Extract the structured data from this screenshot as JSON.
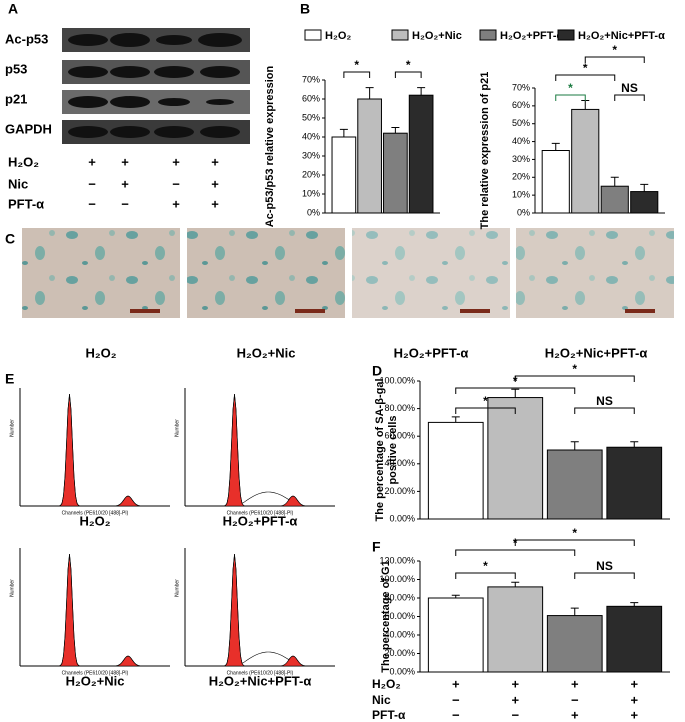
{
  "panel_labels": {
    "a": "A",
    "b": "B",
    "c": "C",
    "d": "D",
    "e": "E",
    "f": "F"
  },
  "blot": {
    "proteins": [
      "Ac-p53",
      "p53",
      "p21",
      "GAPDH"
    ],
    "treatments": [
      {
        "name": "H₂O₂",
        "signs": [
          "+",
          "+",
          "+",
          "+"
        ]
      },
      {
        "name": "Nic",
        "signs": [
          "−",
          "+",
          "−",
          "+"
        ]
      },
      {
        "name": "PFT-α",
        "signs": [
          "−",
          "−",
          "+",
          "+"
        ]
      }
    ]
  },
  "legend": {
    "names": [
      "H₂O₂",
      "H₂O₂+Nic",
      "H₂O₂+PFT-α",
      "H₂O₂+Nic+PFT-α"
    ],
    "colors": [
      "#ffffff",
      "#bdbdbd",
      "#7f7f7f",
      "#2b2b2b"
    ]
  },
  "senescence_images": {
    "captions": [
      "H₂O₂",
      "H₂O₂+Nic",
      "H₂O₂+PFT-α",
      "H₂O₂+Nic+PFT-α"
    ]
  },
  "flow": {
    "captions": [
      "H₂O₂",
      "H₂O₂+PFT-α",
      "H₂O₂+Nic",
      "H₂O₂+Nic+PFT-α"
    ],
    "x_axis_label": "Channels (PE610/20 [488]-PI)",
    "y_axis_label": "Number"
  },
  "f_treatments": [
    {
      "name": "H₂O₂",
      "signs": [
        "+",
        "+",
        "+",
        "+"
      ]
    },
    {
      "name": "Nic",
      "signs": [
        "−",
        "+",
        "−",
        "+"
      ]
    },
    {
      "name": "PFT-α",
      "signs": [
        "−",
        "−",
        "+",
        "+"
      ]
    }
  ],
  "chart_data": [
    {
      "type": "bar",
      "ylabel": [
        "Ac-p53/p53 relative expression"
      ],
      "values": [
        40,
        60,
        42,
        62
      ],
      "errors": [
        4,
        6,
        3,
        4
      ],
      "colors": [
        "#ffffff",
        "#bdbdbd",
        "#7f7f7f",
        "#2b2b2b"
      ],
      "ylim": [
        0,
        70
      ],
      "yticks": [
        {
          "value": 0,
          "label": "0%"
        },
        {
          "value": 10,
          "label": "10%"
        },
        {
          "value": 20,
          "label": "20%"
        },
        {
          "value": 30,
          "label": "30%"
        },
        {
          "value": 40,
          "label": "40%"
        },
        {
          "value": 50,
          "label": "50%"
        },
        {
          "value": 60,
          "label": "60%"
        },
        {
          "value": 70,
          "label": "70%"
        }
      ],
      "annotations": [
        "*",
        "*"
      ]
    },
    {
      "type": "bar",
      "ylabel": [
        "The relative expression of p21"
      ],
      "values": [
        35,
        58,
        15,
        12
      ],
      "errors": [
        4,
        5,
        5,
        4
      ],
      "colors": [
        "#ffffff",
        "#bdbdbd",
        "#7f7f7f",
        "#2b2b2b"
      ],
      "ylim": [
        0,
        70
      ],
      "yticks": [
        {
          "value": 0,
          "label": "0%"
        },
        {
          "value": 10,
          "label": "10%"
        },
        {
          "value": 20,
          "label": "20%"
        },
        {
          "value": 30,
          "label": "30%"
        },
        {
          "value": 40,
          "label": "40%"
        },
        {
          "value": 50,
          "label": "50%"
        },
        {
          "value": 60,
          "label": "60%"
        },
        {
          "value": 70,
          "label": "70%"
        }
      ],
      "annotations": [
        "*",
        "*",
        "*",
        "NS"
      ]
    },
    {
      "type": "bar",
      "ylabel": [
        "The percentage of SA-β-gal",
        "positive cells"
      ],
      "values": [
        70,
        88,
        50,
        52
      ],
      "errors": [
        4,
        6,
        6,
        4
      ],
      "colors": [
        "#ffffff",
        "#bdbdbd",
        "#7f7f7f",
        "#2b2b2b"
      ],
      "ylim": [
        0,
        100
      ],
      "yticks": [
        {
          "value": 0,
          "label": "0.00%"
        },
        {
          "value": 20,
          "label": "20.00%"
        },
        {
          "value": 40,
          "label": "40.00%"
        },
        {
          "value": 60,
          "label": "60.00%"
        },
        {
          "value": 80,
          "label": "80.00%"
        },
        {
          "value": 100,
          "label": "100.00%"
        }
      ],
      "annotations": [
        "*",
        "*",
        "*",
        "NS"
      ]
    },
    {
      "type": "bar",
      "ylabel": [
        "The percentage of  G1"
      ],
      "values": [
        80,
        92,
        61,
        71
      ],
      "errors": [
        3,
        5,
        8,
        4
      ],
      "colors": [
        "#ffffff",
        "#bdbdbd",
        "#7f7f7f",
        "#2b2b2b"
      ],
      "ylim": [
        0,
        120
      ],
      "yticks": [
        {
          "value": 0,
          "label": "0.00%"
        },
        {
          "value": 20,
          "label": "20.00%"
        },
        {
          "value": 40,
          "label": "40.00%"
        },
        {
          "value": 60,
          "label": "60.00%"
        },
        {
          "value": 80,
          "label": "80.00%"
        },
        {
          "value": 100,
          "label": "100.00%"
        },
        {
          "value": 120,
          "label": "120.00%"
        }
      ],
      "annotations": [
        "*",
        "*",
        "*",
        "NS"
      ]
    }
  ]
}
